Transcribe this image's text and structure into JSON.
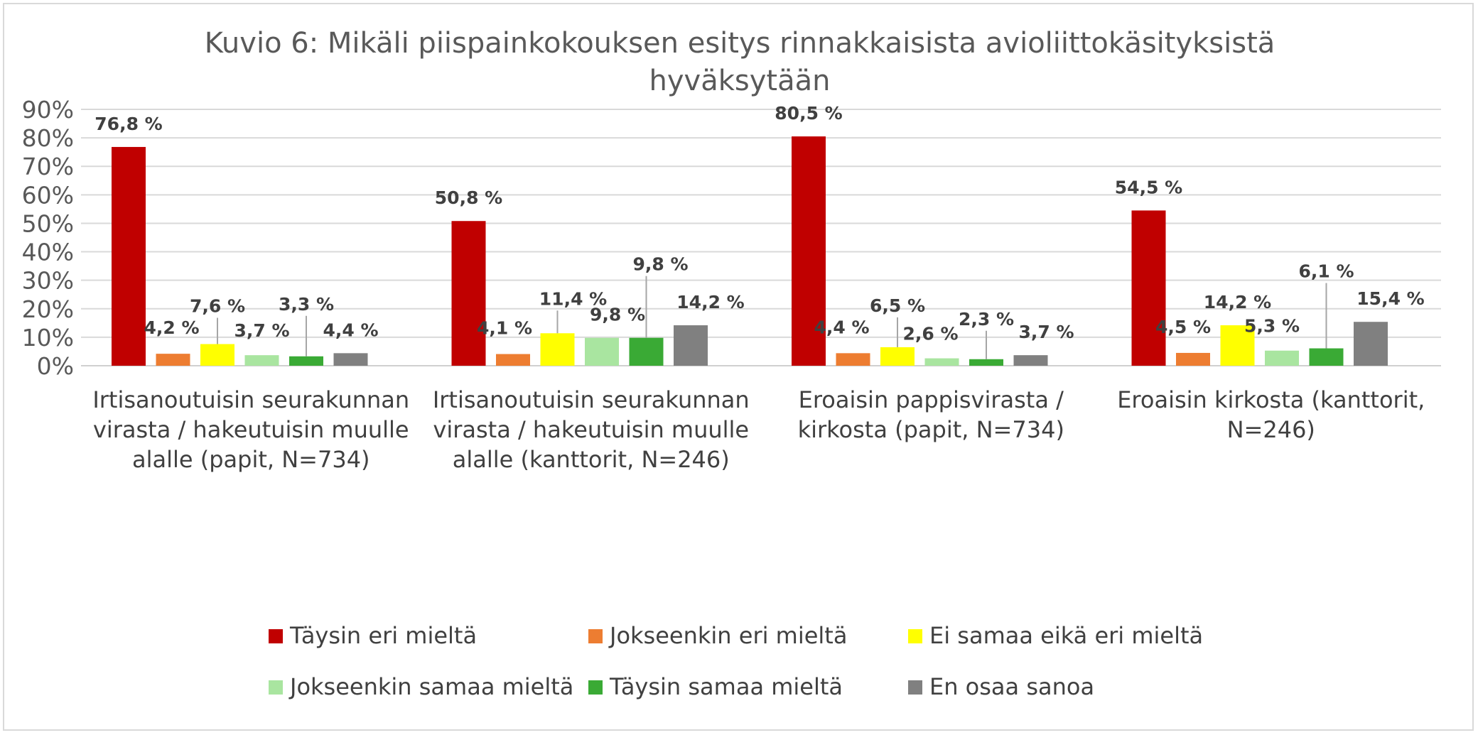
{
  "chart_data": {
    "type": "bar",
    "title": "Kuvio 6: Mikäli piispainkokouksen esitys rinnakkaisista avioliittokäsityksistä hyväksytään",
    "title_lines": [
      "Kuvio 6: Mikäli piispainkokouksen esitys rinnakkaisista avioliittokäsityksistä",
      "hyväksytään"
    ],
    "categories": [
      "Irtisanoutuisin seurakunnan virasta / hakeutuisin muulle alalle (papit, N=734)",
      "Irtisanoutuisin seurakunnan virasta / hakeutuisin muulle alalle (kanttorit, N=246)",
      "Eroaisin pappisvirasta / kirkosta (papit, N=734)",
      "Eroaisin kirkosta (kanttorit, N=246)"
    ],
    "category_lines": [
      [
        "Irtisanoutuisin seurakunnan",
        "virasta / hakeutuisin muulle",
        "alalle (papit, N=734)"
      ],
      [
        "Irtisanoutuisin seurakunnan",
        "virasta / hakeutuisin muulle",
        "alalle (kanttorit, N=246)"
      ],
      [
        "Eroaisin pappisvirasta /",
        "kirkosta (papit, N=734)"
      ],
      [
        "Eroaisin kirkosta (kanttorit,",
        "N=246)"
      ]
    ],
    "series": [
      {
        "name": "Täysin eri mieltä",
        "color": "#c00000",
        "values": [
          76.8,
          50.8,
          80.5,
          54.5
        ],
        "labels": [
          "76,8 %",
          "50,8 %",
          "80,5 %",
          "54,5 %"
        ]
      },
      {
        "name": "Jokseenkin eri mieltä",
        "color": "#ed7d31",
        "values": [
          4.2,
          4.1,
          4.4,
          4.5
        ],
        "labels": [
          "4,2 %",
          "4,1 %",
          "4,4 %",
          "4,5 %"
        ]
      },
      {
        "name": "Ei samaa eikä eri mieltä",
        "color": "#ffff00",
        "values": [
          7.6,
          11.4,
          6.5,
          14.2
        ],
        "labels": [
          "7,6 %",
          "11,4 %",
          "6,5 %",
          "14,2 %"
        ]
      },
      {
        "name": "Jokseenkin samaa mieltä",
        "color": "#a9e5a0",
        "values": [
          3.7,
          9.8,
          2.6,
          5.3
        ],
        "labels": [
          "3,7 %",
          "9,8 %",
          "2,6 %",
          "5,3 %"
        ]
      },
      {
        "name": "Täysin samaa mieltä",
        "color": "#3aaa35",
        "values": [
          3.3,
          9.8,
          2.3,
          6.1
        ],
        "labels": [
          "3,3 %",
          "9,8 %",
          "2,3 %",
          "6,1 %"
        ]
      },
      {
        "name": "En osaa sanoa",
        "color": "#808080",
        "values": [
          4.4,
          14.2,
          3.7,
          15.4
        ],
        "labels": [
          "4,4 %",
          "14,2 %",
          "3,7 %",
          "15,4 %"
        ]
      }
    ],
    "yticks": [
      "0%",
      "10%",
      "20%",
      "30%",
      "40%",
      "50%",
      "60%",
      "70%",
      "80%",
      "90%"
    ],
    "ylim": [
      0,
      90
    ],
    "xlabel": "",
    "ylabel": "",
    "grid": true,
    "legend_position": "bottom"
  }
}
